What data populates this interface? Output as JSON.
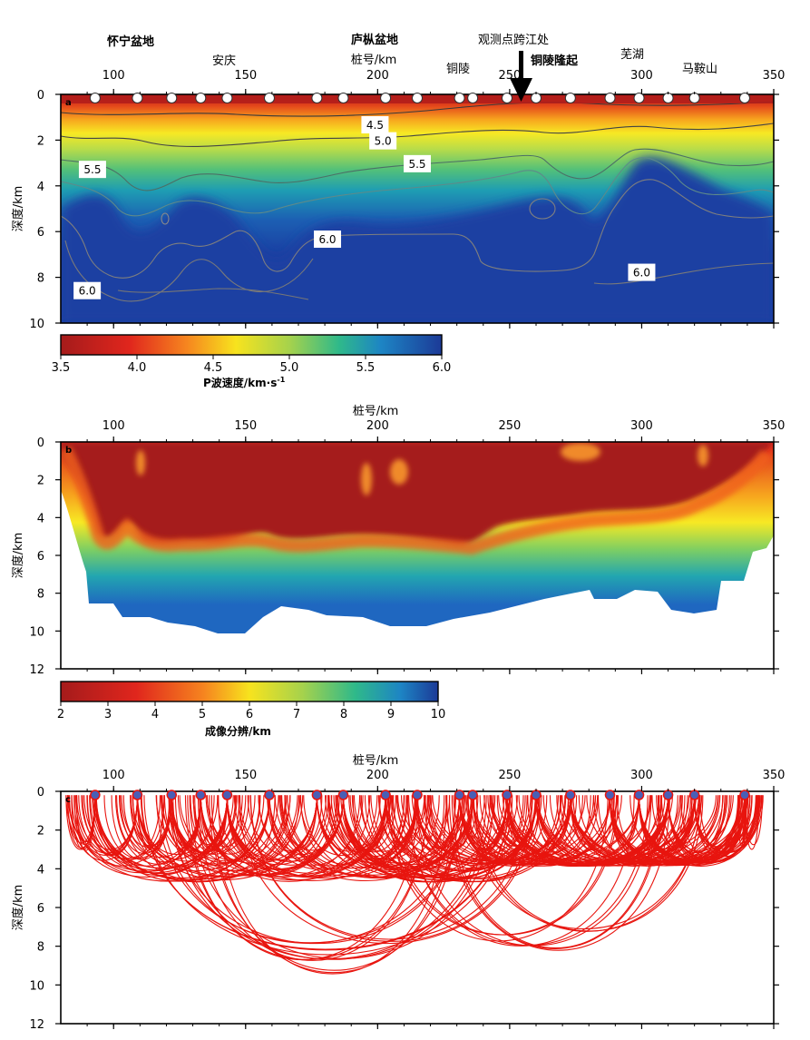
{
  "figure": {
    "place_labels": {
      "huaining": "怀宁盆地",
      "anqing": "安庆",
      "luzong": "庐枞盆地",
      "tongling": "铜陵",
      "crossing": "观测点跨江处",
      "tongling_uplift": "铜陵隆起",
      "wuhu": "芜湖",
      "maanshan": "马鞍山"
    }
  },
  "chart_data": [
    {
      "type": "heatmap",
      "panel": "a",
      "xlabel": "桩号/km",
      "ylabel": "深度/km",
      "x_range": [
        80,
        350
      ],
      "x_ticks": [
        "100",
        "150",
        "200",
        "250",
        "300",
        "350"
      ],
      "y_range": [
        0,
        10
      ],
      "y_ticks": [
        "0",
        "2",
        "4",
        "6",
        "8",
        "10"
      ],
      "colorbar": {
        "label": "P波速度/km·s⁻¹",
        "label_main": "P波速度/km·s",
        "label_sup": "-1",
        "min": 3.5,
        "max": 6.0,
        "ticks": [
          "3.5",
          "4.0",
          "4.5",
          "5.0",
          "5.5",
          "6.0"
        ]
      },
      "contour_labels": [
        "4.5",
        "5.0",
        "5.5",
        "5.5",
        "6.0",
        "6.0",
        "6.0"
      ],
      "stations_km": [
        93,
        109,
        122,
        133,
        143,
        159,
        177,
        187,
        203,
        215,
        231,
        236,
        249,
        260,
        273,
        288,
        299,
        310,
        320,
        339
      ],
      "crossing_km": 255,
      "colors": {
        "low": "#b0201d",
        "mid": "#f5e70a",
        "green": "#2ab685",
        "high": "#1a3fa2"
      }
    },
    {
      "type": "heatmap",
      "panel": "b",
      "xlabel": "桩号/km",
      "ylabel": "深度/km",
      "x_range": [
        80,
        350
      ],
      "x_ticks": [
        "100",
        "150",
        "200",
        "250",
        "300",
        "350"
      ],
      "y_range": [
        0,
        12
      ],
      "y_ticks": [
        "0",
        "2",
        "4",
        "6",
        "8",
        "10",
        "12"
      ],
      "colorbar": {
        "label": "成像分辨/km",
        "min": 2,
        "max": 10,
        "ticks": [
          "2",
          "3",
          "4",
          "5",
          "6",
          "7",
          "8",
          "9",
          "10"
        ]
      }
    },
    {
      "type": "line",
      "panel": "c",
      "description_kind": "ray paths",
      "xlabel": "桩号/km",
      "ylabel": "深度/km",
      "x_range": [
        80,
        350
      ],
      "x_ticks": [
        "100",
        "150",
        "200",
        "250",
        "300",
        "350"
      ],
      "y_range": [
        0,
        12
      ],
      "y_ticks": [
        "0",
        "2",
        "4",
        "6",
        "8",
        "10",
        "12"
      ],
      "ray_color": "#e8150f",
      "station_color": "#4a5fb5"
    }
  ]
}
